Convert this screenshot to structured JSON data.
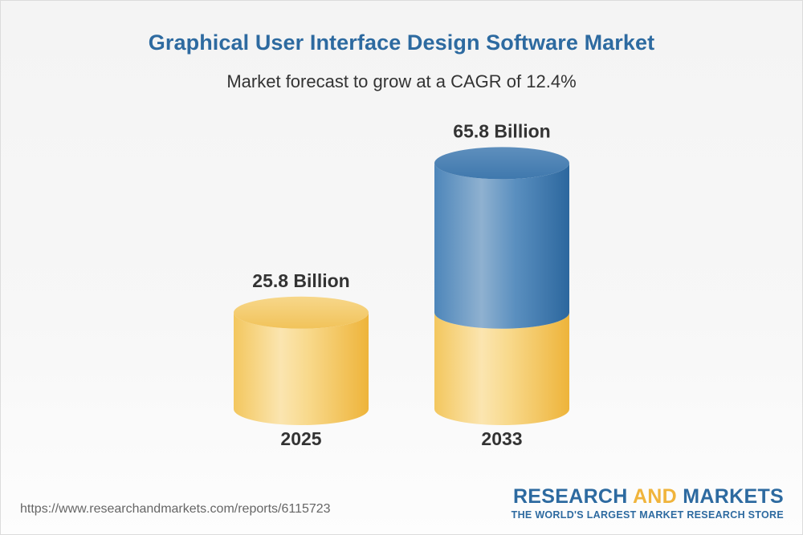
{
  "title": "Graphical User Interface Design Software Market",
  "subtitle": "Market forecast to grow at a CAGR of 12.4%",
  "chart_data": {
    "type": "bar",
    "title": "Graphical User Interface Design Software Market",
    "subtitle": "Market forecast to grow at a CAGR of 12.4%",
    "categories": [
      "2025",
      "2033"
    ],
    "values": [
      25.8,
      65.8
    ],
    "value_labels": [
      "25.8 Billion",
      "65.8 Billion"
    ],
    "unit": "Billion",
    "xlabel": "",
    "ylabel": "",
    "grid": false,
    "legend": "none",
    "base_value": 25.8,
    "colors": {
      "base": "#f0be54",
      "growth": "#3c7ab0"
    }
  },
  "footer": {
    "url": "https://www.researchandmarkets.com/reports/6115723",
    "brand_part1": "RESEARCH ",
    "brand_part2": "AND",
    "brand_part3": " MARKETS",
    "tagline": "THE WORLD'S LARGEST MARKET RESEARCH STORE"
  }
}
